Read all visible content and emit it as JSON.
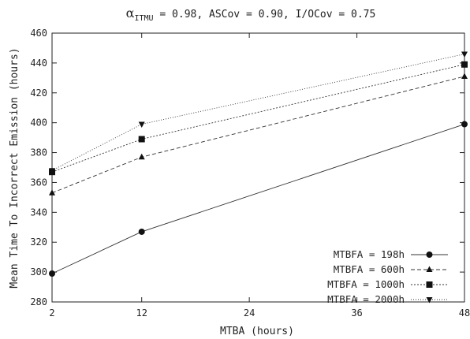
{
  "chart_data": {
    "type": "line",
    "title_parts": {
      "alpha": "α",
      "subscript": "ITMU",
      "rest": " = 0.98, ASCov = 0.90, I/OCov = 0.75"
    },
    "xlabel": "MTBA (hours)",
    "ylabel": "Mean Time To Incorrect Emission (hours)",
    "x": [
      2,
      12,
      48
    ],
    "xticks": [
      2,
      12,
      24,
      36,
      48
    ],
    "yticks": [
      280,
      300,
      320,
      340,
      360,
      380,
      400,
      420,
      440,
      460
    ],
    "xlim": [
      2,
      48
    ],
    "ylim": [
      280,
      460
    ],
    "grid": false,
    "legend_position": "bottom-right",
    "series": [
      {
        "name": "MTBFA = 198h",
        "values": [
          299,
          327,
          399
        ],
        "marker": "circle",
        "dash": ""
      },
      {
        "name": "MTBFA = 600h",
        "values": [
          353,
          377,
          431
        ],
        "marker": "triangle-up",
        "dash": "5,3"
      },
      {
        "name": "MTBFA = 1000h",
        "values": [
          367,
          389,
          439
        ],
        "marker": "square",
        "dash": "2,2"
      },
      {
        "name": "MTBFA = 2000h",
        "values": [
          368,
          399,
          446
        ],
        "marker": "triangle-down",
        "dash": "1,2"
      }
    ]
  }
}
